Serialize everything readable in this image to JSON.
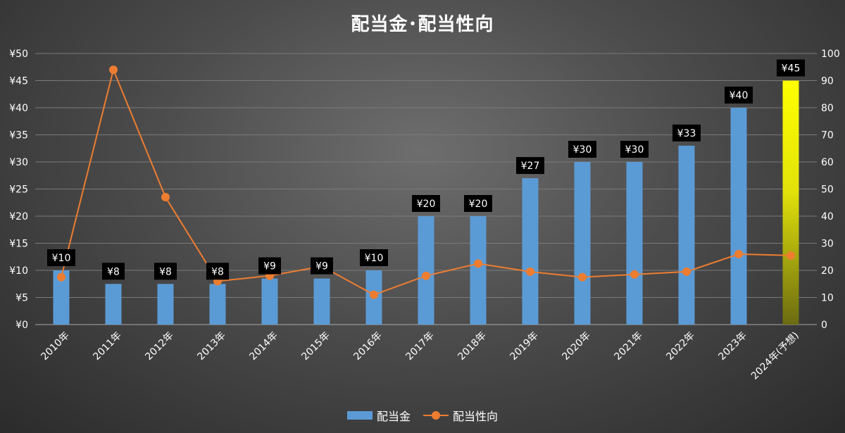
{
  "chart_data": {
    "type": "bar+line",
    "title": "配当金･配当性向",
    "categories": [
      "2010年",
      "2011年",
      "2012年",
      "2013年",
      "2014年",
      "2015年",
      "2016年",
      "2017年",
      "2018年",
      "2019年",
      "2020年",
      "2021年",
      "2022年",
      "2023年",
      "2024年(予想)"
    ],
    "series": [
      {
        "name": "配当金",
        "type": "bar",
        "axis": "left",
        "values": [
          10,
          7.5,
          7.5,
          7.5,
          8.5,
          8.5,
          10,
          20,
          20,
          27,
          30,
          30,
          33,
          40,
          45
        ],
        "data_labels": [
          "¥10",
          "¥8",
          "¥8",
          "¥8",
          "¥9",
          "¥9",
          "¥10",
          "¥20",
          "¥20",
          "¥27",
          "¥30",
          "¥30",
          "¥33",
          "¥40",
          "¥45"
        ],
        "color": "#5b9bd5",
        "highlight_last_color": "#ffff00"
      },
      {
        "name": "配当性向",
        "type": "line",
        "axis": "right",
        "values": [
          17.5,
          94,
          47,
          16,
          18,
          21.5,
          11,
          18,
          22.5,
          19.5,
          17.5,
          18.5,
          19.5,
          26,
          25.5
        ],
        "color": "#ed7d31"
      }
    ],
    "y_left": {
      "ylim": [
        0,
        50
      ],
      "ticks": [
        0,
        5,
        10,
        15,
        20,
        25,
        30,
        35,
        40,
        45,
        50
      ],
      "tick_labels": [
        "¥0",
        "¥5",
        "¥10",
        "¥15",
        "¥20",
        "¥25",
        "¥30",
        "¥35",
        "¥40",
        "¥45",
        "¥50"
      ]
    },
    "y_right": {
      "ylim": [
        0,
        100
      ],
      "ticks": [
        0,
        10,
        20,
        30,
        40,
        50,
        60,
        70,
        80,
        90,
        100
      ],
      "tick_labels": [
        "0",
        "10",
        "20",
        "30",
        "40",
        "50",
        "60",
        "70",
        "80",
        "90",
        "100"
      ]
    },
    "grid": true,
    "legend_position": "bottom"
  }
}
